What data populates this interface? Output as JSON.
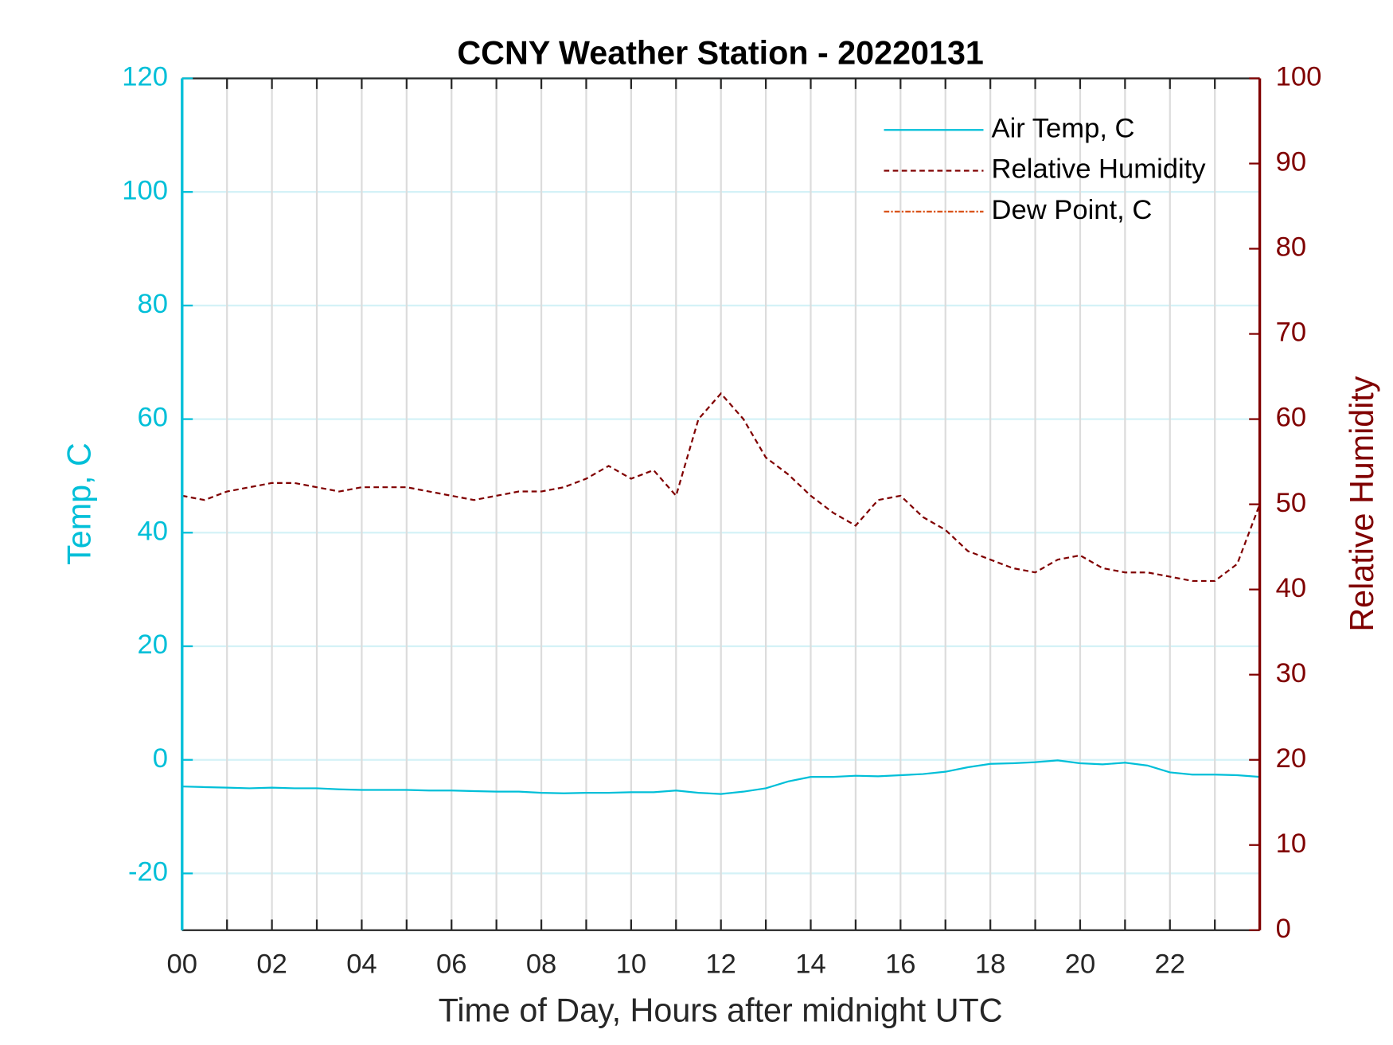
{
  "chart_data": {
    "type": "line",
    "title": "CCNY Weather Station - 20220131",
    "xlabel": "Time of Day, Hours after midnight UTC",
    "ylabel": "Temp, C",
    "y2label": "Relative Humidity",
    "x": [
      0,
      0.5,
      1,
      1.5,
      2,
      2.5,
      3,
      3.5,
      4,
      4.5,
      5,
      5.5,
      6,
      6.5,
      7,
      7.5,
      8,
      8.5,
      9,
      9.5,
      10,
      10.5,
      11,
      11.5,
      12,
      12.5,
      13,
      13.5,
      14,
      14.5,
      15,
      15.5,
      16,
      16.5,
      17,
      17.5,
      18,
      18.5,
      19,
      19.5,
      20,
      20.5,
      21,
      21.5,
      22,
      22.5,
      23,
      23.5,
      24
    ],
    "series": [
      {
        "name": "Air Temp, C",
        "color": "#00bfd8",
        "axis": "y",
        "style": "solid",
        "values": [
          -4.7,
          -4.8,
          -4.9,
          -5.0,
          -4.9,
          -5.0,
          -5.0,
          -5.2,
          -5.3,
          -5.3,
          -5.3,
          -5.4,
          -5.4,
          -5.5,
          -5.6,
          -5.6,
          -5.8,
          -5.9,
          -5.8,
          -5.8,
          -5.7,
          -5.7,
          -5.4,
          -5.8,
          -6.0,
          -5.6,
          -5.0,
          -3.8,
          -3.0,
          -3.0,
          -2.8,
          -2.9,
          -2.7,
          -2.5,
          -2.1,
          -1.3,
          -0.7,
          -0.6,
          -0.4,
          -0.1,
          -0.6,
          -0.8,
          -0.5,
          -1.0,
          -2.2,
          -2.6,
          -2.6,
          -2.7,
          -3.0
        ]
      },
      {
        "name": "Relative Humidity",
        "color": "#800000",
        "axis": "y2",
        "style": "dashed",
        "values": [
          51,
          50.5,
          51.5,
          52,
          52.5,
          52.5,
          52,
          51.5,
          52,
          52,
          52,
          51.5,
          51,
          50.5,
          51,
          51.5,
          51.5,
          52,
          53,
          54.5,
          53,
          54,
          51,
          60,
          63,
          60,
          55.5,
          53.5,
          51,
          49,
          47.5,
          50.5,
          51,
          48.5,
          47,
          44.5,
          43.5,
          42.5,
          42,
          43.5,
          44,
          42.5,
          42,
          42,
          41.5,
          41,
          41,
          43,
          50
        ]
      },
      {
        "name": "Dew Point, C",
        "color": "#d95319",
        "axis": "y",
        "style": "dashdot",
        "values": [
          null,
          null,
          null,
          null,
          null,
          null,
          null,
          null,
          null,
          null,
          null,
          null,
          null,
          null,
          null,
          null,
          null,
          null,
          null,
          null,
          null,
          null,
          null,
          null,
          null,
          null,
          null,
          null,
          null,
          null,
          null,
          null,
          null,
          null,
          null,
          null,
          null,
          null,
          null,
          null,
          null,
          null,
          null,
          null,
          null,
          null,
          null,
          null,
          null
        ]
      }
    ],
    "xlim": [
      0,
      24
    ],
    "xticks": [
      {
        "value": 0,
        "label": "00"
      },
      {
        "value": 2,
        "label": "02"
      },
      {
        "value": 4,
        "label": "04"
      },
      {
        "value": 6,
        "label": "06"
      },
      {
        "value": 8,
        "label": "08"
      },
      10,
      12,
      14,
      16,
      18,
      20,
      22
    ],
    "xminor_ticks": [
      1,
      3,
      5,
      7,
      9,
      11,
      13,
      15,
      17,
      19,
      21,
      23
    ],
    "ylim": [
      -30,
      120
    ],
    "yticks": [
      -20,
      0,
      20,
      40,
      60,
      80,
      100,
      120
    ],
    "y2lim": [
      0,
      100
    ],
    "y2ticks": [
      0,
      10,
      20,
      30,
      40,
      50,
      60,
      70,
      80,
      90,
      100
    ],
    "grid": true,
    "legend": "upper right",
    "ycolor": "#00bfd8",
    "y2color": "#800000"
  }
}
